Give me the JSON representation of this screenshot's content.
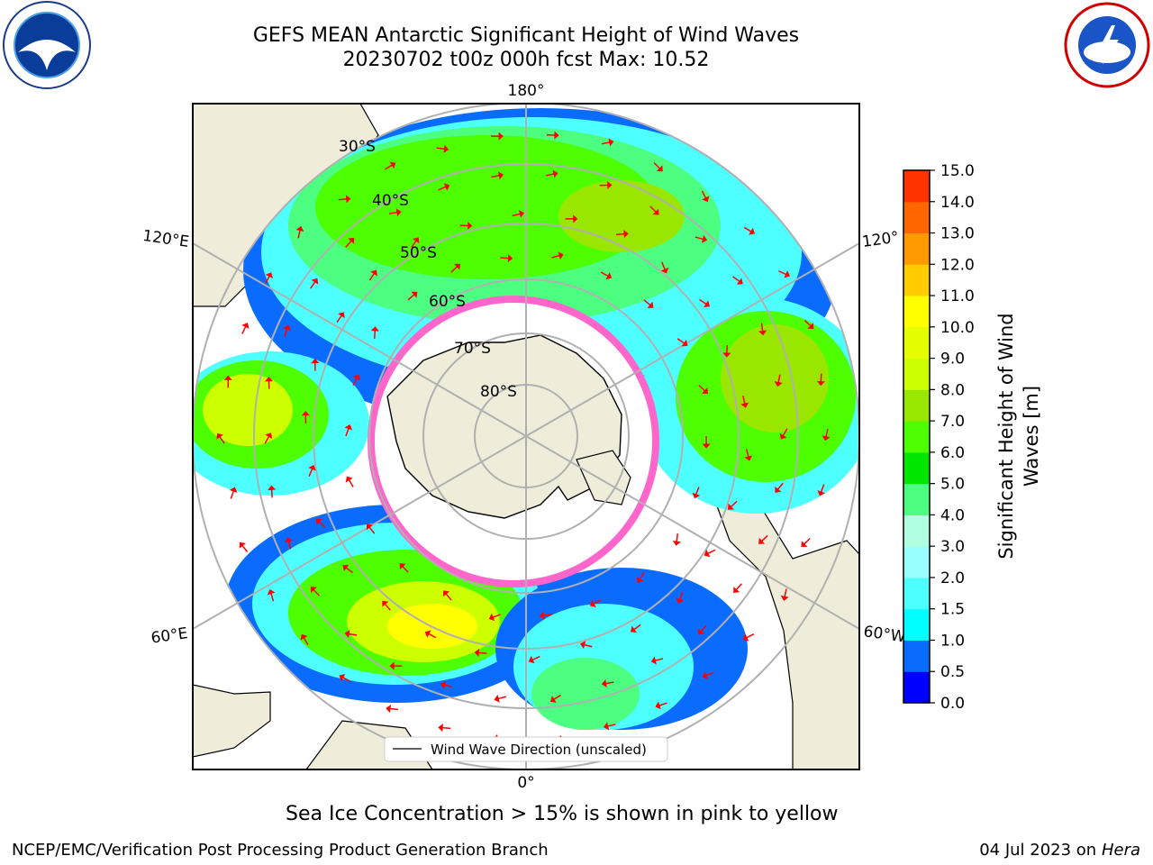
{
  "header": {
    "title_line1": "GEFS MEAN Antarctic Significant Height of Wind Waves",
    "title_line2": "20230702 t00z 000h fcst   Max: 10.52"
  },
  "logos": {
    "left": "noaa-logo",
    "right": "nws-logo"
  },
  "map": {
    "projection": "south-polar-stereographic",
    "latitude_labels": [
      "30°S",
      "40°S",
      "50°S",
      "60°S",
      "70°S",
      "80°S"
    ],
    "longitude_labels": {
      "top": "180°",
      "bottom": "0°",
      "left_upper": "120°E",
      "left_lower": "60°E",
      "right_upper": "120°",
      "right_lower": "60°W"
    },
    "legend_label": "Wind Wave Direction (unscaled)",
    "colors": {
      "land": "#efedda",
      "ice_pink": "#ff66cc",
      "ice_yellow": "#ffcc33",
      "arrow": "#ff0000",
      "grid": "#b0b0b0"
    }
  },
  "colorbar": {
    "label_line1": "Significant Height of Wind",
    "label_line2": "Waves [m]",
    "levels": [
      "0.0",
      "0.5",
      "1.0",
      "1.5",
      "2.0",
      "3.0",
      "4.0",
      "5.0",
      "6.0",
      "7.0",
      "8.0",
      "9.0",
      "10.0",
      "11.0",
      "12.0",
      "13.0",
      "14.0",
      "15.0"
    ],
    "colors": [
      "#0000ff",
      "#0a6cff",
      "#00ffff",
      "#4dffff",
      "#99ffff",
      "#b0ffe0",
      "#4dff80",
      "#00e600",
      "#4dff00",
      "#99e600",
      "#ccff00",
      "#e6ff00",
      "#ffff00",
      "#ffcc00",
      "#ff9900",
      "#ff6600",
      "#ff3300"
    ]
  },
  "caption": "Sea Ice Concentration > 15% is shown in pink to yellow",
  "footer": {
    "left": "NCEP/EMC/Verification Post Processing Product Generation Branch",
    "right_date": "04 Jul 2023 on ",
    "right_host": "Hera"
  }
}
